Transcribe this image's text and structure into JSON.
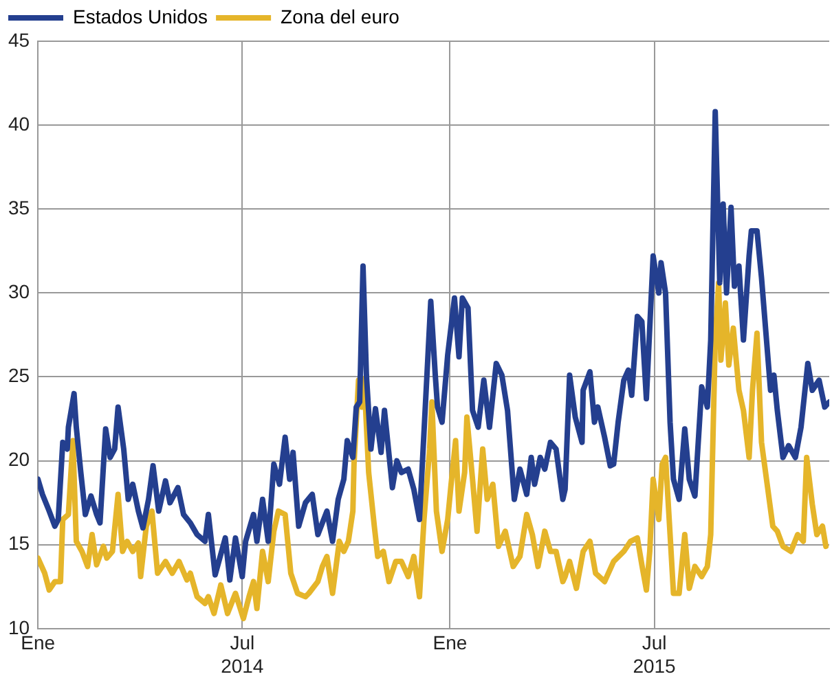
{
  "chart_data": {
    "type": "line",
    "legend": "top left",
    "grid": true,
    "marker": "none",
    "line_style": "solid",
    "xlim": [
      "2014-01-01",
      "2015-12-03"
    ],
    "xticks": [
      {
        "value": "2014-01-01",
        "label": "Ene"
      },
      {
        "value": "2014-07-01",
        "label": "Jul\n2014"
      },
      {
        "value": "2015-01-01",
        "label": "Ene"
      },
      {
        "value": "2015-07-01",
        "label": "Jul\n2015"
      }
    ],
    "ylim": [
      10,
      45
    ],
    "yticks": [
      10,
      15,
      20,
      25,
      30,
      35,
      40,
      45
    ],
    "series": [
      {
        "name": "Estados Unidos",
        "color": "#243f8f",
        "x": [
          "2014-01-01",
          "2014-01-05",
          "2014-01-11",
          "2014-01-16",
          "2014-01-19",
          "2014-01-23",
          "2014-01-27",
          "2014-01-28",
          "2014-02-02",
          "2014-02-04",
          "2014-02-08",
          "2014-02-12",
          "2014-02-17",
          "2014-02-22",
          "2014-02-25",
          "2014-03-02",
          "2014-03-06",
          "2014-03-10",
          "2014-03-13",
          "2014-03-18",
          "2014-03-22",
          "2014-03-26",
          "2014-03-31",
          "2014-04-04",
          "2014-04-09",
          "2014-04-13",
          "2014-04-18",
          "2014-04-24",
          "2014-04-28",
          "2014-05-05",
          "2014-05-10",
          "2014-05-16",
          "2014-05-22",
          "2014-05-29",
          "2014-06-01",
          "2014-06-07",
          "2014-06-16",
          "2014-06-20",
          "2014-06-25",
          "2014-07-01",
          "2014-07-04",
          "2014-07-11",
          "2014-07-14",
          "2014-07-19",
          "2014-07-24",
          "2014-07-29",
          "2014-08-03",
          "2014-08-08",
          "2014-08-12",
          "2014-08-15",
          "2014-08-20",
          "2014-08-26",
          "2014-09-01",
          "2014-09-06",
          "2014-09-14",
          "2014-09-19",
          "2014-09-24",
          "2014-09-29",
          "2014-10-02",
          "2014-10-07",
          "2014-10-10",
          "2014-10-13",
          "2014-10-16",
          "2014-10-19",
          "2014-10-23",
          "2014-10-27",
          "2014-11-01",
          "2014-11-04",
          "2014-11-11",
          "2014-11-15",
          "2014-11-19",
          "2014-11-25",
          "2014-11-30",
          "2014-12-05",
          "2014-12-09",
          "2014-12-15",
          "2014-12-19",
          "2014-12-21",
          "2014-12-25",
          "2014-12-30",
          "2015-01-05",
          "2015-01-09",
          "2015-01-12",
          "2015-01-17",
          "2015-01-21",
          "2015-01-26",
          "2015-01-31",
          "2015-02-05",
          "2015-02-11",
          "2015-02-16",
          "2015-02-21",
          "2015-02-27",
          "2015-03-04",
          "2015-03-10",
          "2015-03-14",
          "2015-03-17",
          "2015-03-22",
          "2015-03-26",
          "2015-03-31",
          "2015-04-05",
          "2015-04-11",
          "2015-04-13",
          "2015-04-17",
          "2015-04-22",
          "2015-04-28",
          "2015-04-29",
          "2015-05-05",
          "2015-05-09",
          "2015-05-12",
          "2015-05-18",
          "2015-05-23",
          "2015-05-26",
          "2015-05-30",
          "2015-06-04",
          "2015-06-08",
          "2015-06-11",
          "2015-06-16",
          "2015-06-20",
          "2015-06-24",
          "2015-06-30",
          "2015-07-05",
          "2015-07-07",
          "2015-07-11",
          "2015-07-15",
          "2015-07-18",
          "2015-07-23",
          "2015-07-28",
          "2015-08-01",
          "2015-08-06",
          "2015-08-12",
          "2015-08-17",
          "2015-08-20",
          "2015-08-24",
          "2015-08-28",
          "2015-08-31",
          "2015-09-03",
          "2015-09-07",
          "2015-09-10",
          "2015-09-14",
          "2015-09-18",
          "2015-09-23",
          "2015-09-25",
          "2015-09-30",
          "2015-10-04",
          "2015-10-09",
          "2015-10-12",
          "2015-10-15",
          "2015-10-18",
          "2015-10-23",
          "2015-10-28",
          "2015-11-03",
          "2015-11-08",
          "2015-11-14",
          "2015-11-18",
          "2015-11-24",
          "2015-11-29",
          "2015-12-03"
        ],
        "values": [
          18.9,
          18.0,
          17.0,
          16.1,
          16.5,
          21.1,
          20.7,
          22.0,
          24.0,
          22.0,
          19.3,
          16.8,
          17.9,
          16.8,
          16.3,
          21.9,
          20.2,
          20.7,
          23.2,
          20.7,
          17.7,
          18.6,
          17.0,
          16.0,
          17.7,
          19.7,
          17.0,
          18.8,
          17.5,
          18.4,
          16.8,
          16.3,
          15.6,
          15.2,
          16.8,
          13.2,
          15.4,
          12.9,
          15.4,
          13.1,
          15.2,
          16.8,
          15.2,
          17.7,
          15.2,
          19.8,
          18.6,
          21.4,
          18.9,
          20.5,
          16.1,
          17.5,
          18.0,
          15.6,
          17.0,
          15.2,
          17.7,
          18.9,
          21.2,
          20.2,
          23.2,
          23.5,
          31.6,
          25.1,
          20.7,
          23.1,
          20.5,
          23.0,
          18.4,
          20.0,
          19.3,
          19.5,
          18.3,
          16.5,
          21.7,
          29.5,
          25.1,
          23.2,
          22.3,
          26.3,
          29.7,
          26.2,
          29.7,
          29.1,
          23.0,
          22.0,
          24.8,
          22.0,
          25.8,
          25.1,
          23.0,
          17.7,
          19.5,
          18.0,
          20.2,
          18.6,
          20.2,
          19.5,
          21.1,
          20.7,
          17.7,
          18.3,
          25.1,
          22.6,
          21.1,
          24.2,
          25.3,
          22.3,
          23.2,
          21.4,
          19.7,
          19.8,
          22.3,
          24.8,
          25.4,
          23.9,
          28.6,
          28.3,
          23.7,
          32.2,
          30.0,
          31.8,
          30.0,
          22.3,
          18.9,
          17.7,
          21.9,
          18.9,
          17.9,
          24.4,
          23.2,
          27.2,
          40.8,
          30.6,
          35.3,
          30.0,
          35.1,
          30.4,
          31.6,
          27.2,
          32.2,
          33.7,
          33.7,
          30.9,
          26.7,
          24.2,
          25.1,
          23.0,
          20.2,
          20.9,
          20.2,
          22.0,
          25.8,
          24.2,
          24.8,
          23.2,
          23.5
        ]
      },
      {
        "name": "Zona del euro",
        "color": "#e5b52a",
        "x": [
          "2014-01-01",
          "2014-01-07",
          "2014-01-11",
          "2014-01-16",
          "2014-01-21",
          "2014-01-23",
          "2014-01-28",
          "2014-02-01",
          "2014-02-04",
          "2014-02-09",
          "2014-02-14",
          "2014-02-18",
          "2014-02-22",
          "2014-02-28",
          "2014-03-03",
          "2014-03-08",
          "2014-03-13",
          "2014-03-17",
          "2014-03-21",
          "2014-03-26",
          "2014-03-31",
          "2014-04-02",
          "2014-04-07",
          "2014-04-12",
          "2014-04-17",
          "2014-04-24",
          "2014-04-30",
          "2014-05-06",
          "2014-05-13",
          "2014-05-16",
          "2014-05-22",
          "2014-05-29",
          "2014-06-01",
          "2014-06-06",
          "2014-06-12",
          "2014-06-18",
          "2014-06-25",
          "2014-07-02",
          "2014-07-07",
          "2014-07-11",
          "2014-07-14",
          "2014-07-19",
          "2014-07-24",
          "2014-07-29",
          "2014-08-02",
          "2014-08-08",
          "2014-08-13",
          "2014-08-19",
          "2014-08-26",
          "2014-08-29",
          "2014-09-06",
          "2014-09-10",
          "2014-09-14",
          "2014-09-19",
          "2014-09-25",
          "2014-09-29",
          "2014-10-03",
          "2014-10-07",
          "2014-10-08",
          "2014-10-12",
          "2014-10-15",
          "2014-10-17",
          "2014-10-21",
          "2014-10-26",
          "2014-10-29",
          "2014-11-03",
          "2014-11-08",
          "2014-11-14",
          "2014-11-19",
          "2014-11-25",
          "2014-11-30",
          "2014-12-05",
          "2014-12-09",
          "2014-12-14",
          "2014-12-16",
          "2014-12-20",
          "2014-12-25",
          "2014-12-30",
          "2015-01-02",
          "2015-01-06",
          "2015-01-09",
          "2015-01-14",
          "2015-01-16",
          "2015-01-21",
          "2015-01-25",
          "2015-01-30",
          "2015-02-03",
          "2015-02-08",
          "2015-02-13",
          "2015-02-19",
          "2015-02-26",
          "2015-03-04",
          "2015-03-10",
          "2015-03-15",
          "2015-03-20",
          "2015-03-26",
          "2015-03-31",
          "2015-04-05",
          "2015-04-11",
          "2015-04-13",
          "2015-04-17",
          "2015-04-23",
          "2015-04-29",
          "2015-05-05",
          "2015-05-10",
          "2015-05-18",
          "2015-05-26",
          "2015-06-04",
          "2015-06-10",
          "2015-06-16",
          "2015-06-20",
          "2015-06-24",
          "2015-06-27",
          "2015-06-30",
          "2015-07-05",
          "2015-07-08",
          "2015-07-11",
          "2015-07-15",
          "2015-07-18",
          "2015-07-23",
          "2015-07-28",
          "2015-08-01",
          "2015-08-06",
          "2015-08-12",
          "2015-08-17",
          "2015-08-20",
          "2015-08-24",
          "2015-08-27",
          "2015-08-29",
          "2015-09-02",
          "2015-09-05",
          "2015-09-09",
          "2015-09-14",
          "2015-09-18",
          "2015-09-23",
          "2015-09-26",
          "2015-09-30",
          "2015-10-04",
          "2015-10-09",
          "2015-10-14",
          "2015-10-18",
          "2015-10-23",
          "2015-10-30",
          "2015-11-05",
          "2015-11-10",
          "2015-11-13",
          "2015-11-18",
          "2015-11-22",
          "2015-11-27",
          "2015-11-30"
        ],
        "values": [
          14.2,
          13.3,
          12.3,
          12.8,
          12.8,
          16.5,
          16.8,
          21.2,
          15.2,
          14.6,
          13.7,
          15.6,
          13.8,
          14.9,
          14.2,
          14.6,
          18.0,
          14.6,
          15.2,
          14.6,
          15.1,
          13.1,
          16.1,
          17.0,
          13.3,
          14.0,
          13.3,
          14.0,
          12.9,
          13.3,
          11.9,
          11.5,
          11.9,
          10.9,
          12.6,
          10.9,
          12.1,
          10.6,
          11.9,
          12.8,
          11.2,
          14.6,
          12.8,
          15.8,
          17.0,
          16.8,
          13.3,
          12.1,
          11.9,
          12.1,
          12.8,
          13.7,
          14.3,
          12.1,
          15.2,
          14.6,
          15.2,
          17.0,
          19.8,
          24.8,
          23.2,
          24.9,
          19.3,
          16.1,
          14.3,
          14.6,
          12.8,
          14.0,
          14.0,
          13.1,
          14.3,
          11.9,
          16.5,
          20.7,
          23.5,
          17.0,
          14.6,
          16.5,
          18.6,
          21.2,
          17.0,
          19.3,
          22.6,
          18.9,
          15.8,
          20.7,
          17.7,
          18.6,
          14.9,
          15.8,
          13.7,
          14.3,
          16.8,
          15.6,
          13.7,
          15.8,
          14.6,
          14.6,
          12.8,
          13.1,
          14.0,
          12.4,
          14.6,
          15.2,
          13.3,
          12.8,
          14.0,
          14.6,
          15.2,
          15.4,
          13.8,
          12.3,
          14.6,
          18.9,
          16.5,
          19.8,
          20.2,
          15.6,
          12.1,
          12.1,
          15.6,
          12.4,
          13.7,
          13.1,
          13.7,
          15.6,
          27.2,
          30.6,
          26.0,
          29.4,
          25.7,
          27.9,
          24.2,
          23.0,
          20.2,
          24.2,
          27.6,
          21.1,
          18.6,
          16.1,
          15.8,
          14.9,
          14.6,
          15.6,
          15.2,
          20.2,
          17.4,
          15.6,
          16.1,
          14.9
        ]
      }
    ]
  }
}
